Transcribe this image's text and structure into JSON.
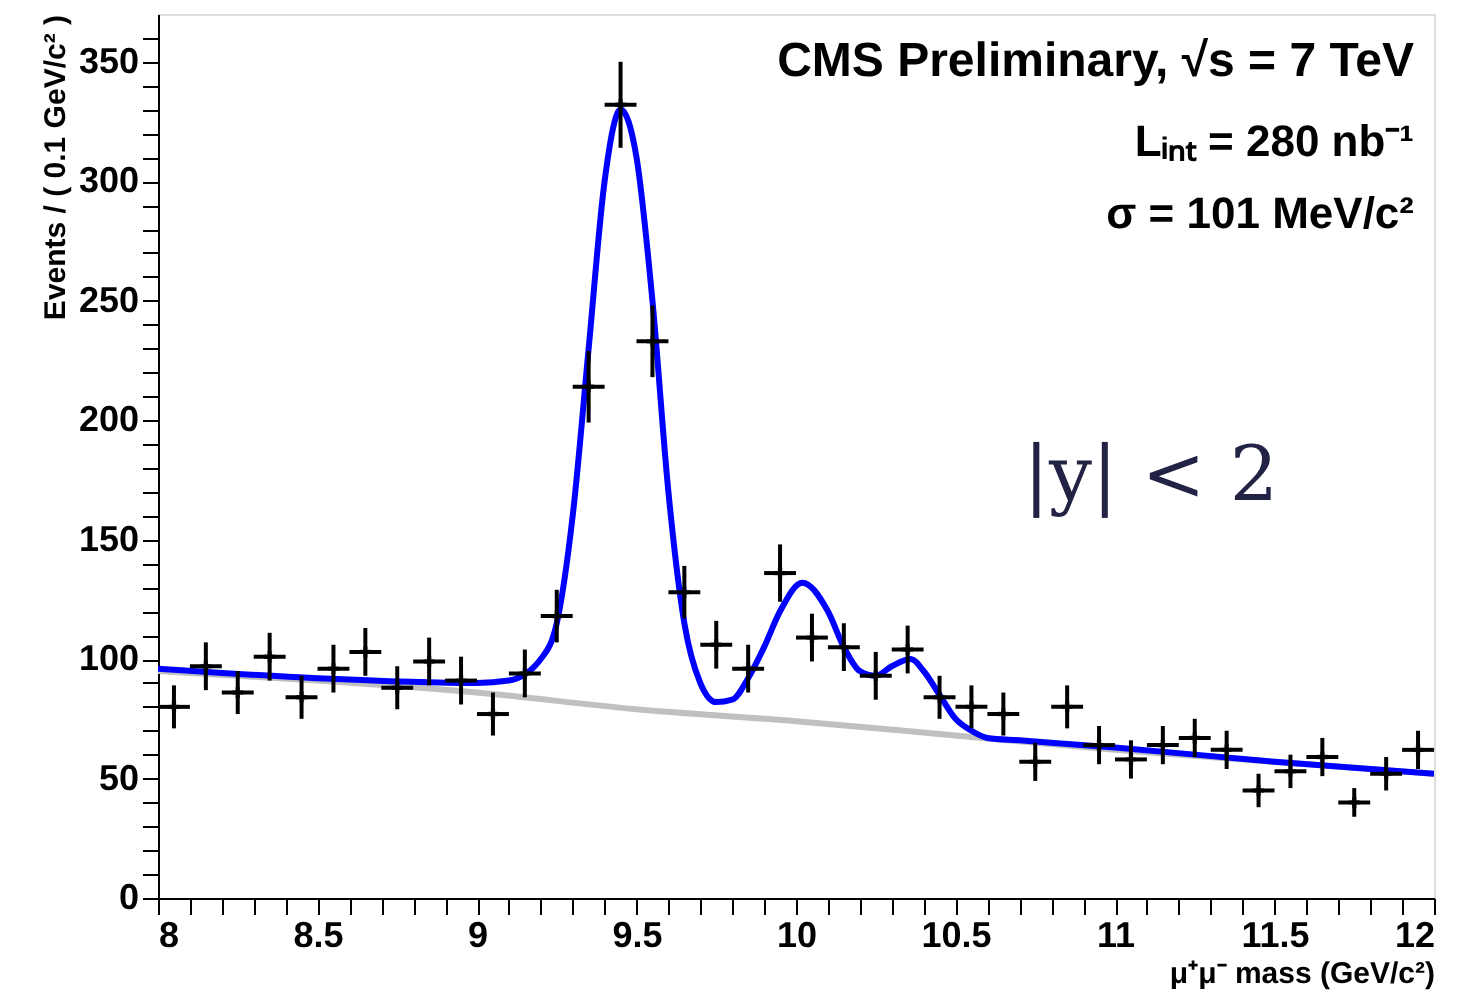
{
  "chart_data": {
    "type": "scatter",
    "xlabel": "μ⁺μ⁻ mass (GeV/c²)",
    "ylabel": "Events / ( 0.1 GeV/c² )",
    "annotations": [
      "CMS Preliminary, √s = 7 TeV",
      "Lᵢₙₜ = 280 nb⁻¹",
      "σ = 101 MeV/c²",
      "|y| < 2"
    ],
    "xlim": [
      8,
      12
    ],
    "xticks": [
      8,
      {
        "value": 8.1,
        "label": null
      },
      {
        "value": 8.2,
        "label": null
      },
      {
        "value": 8.3,
        "label": null
      },
      {
        "value": 8.4,
        "label": null
      },
      8.5,
      {
        "value": 8.6,
        "label": null
      },
      {
        "value": 8.7,
        "label": null
      },
      {
        "value": 8.8,
        "label": null
      },
      {
        "value": 8.9,
        "label": null
      },
      9,
      {
        "value": 9.1,
        "label": null
      },
      {
        "value": 9.2,
        "label": null
      },
      {
        "value": 9.3,
        "label": null
      },
      {
        "value": 9.4,
        "label": null
      },
      9.5,
      {
        "value": 9.6,
        "label": null
      },
      {
        "value": 9.7,
        "label": null
      },
      {
        "value": 9.8,
        "label": null
      },
      {
        "value": 9.9,
        "label": null
      },
      10,
      {
        "value": 10.1,
        "label": null
      },
      {
        "value": 10.2,
        "label": null
      },
      {
        "value": 10.3,
        "label": null
      },
      {
        "value": 10.4,
        "label": null
      },
      10.5,
      {
        "value": 10.6,
        "label": null
      },
      {
        "value": 10.7,
        "label": null
      },
      {
        "value": 10.8,
        "label": null
      },
      {
        "value": 10.9,
        "label": null
      },
      11,
      {
        "value": 11.1,
        "label": null
      },
      {
        "value": 11.2,
        "label": null
      },
      {
        "value": 11.3,
        "label": null
      },
      {
        "value": 11.4,
        "label": null
      },
      11.5,
      {
        "value": 11.6,
        "label": null
      },
      {
        "value": 11.7,
        "label": null
      },
      {
        "value": 11.8,
        "label": null
      },
      {
        "value": 11.9,
        "label": null
      },
      12
    ],
    "ylim": [
      0,
      370
    ],
    "yticks": [
      0,
      {
        "value": 10,
        "label": null
      },
      {
        "value": 20,
        "label": null
      },
      {
        "value": 30,
        "label": null
      },
      {
        "value": 40,
        "label": null
      },
      50,
      {
        "value": 60,
        "label": null
      },
      {
        "value": 70,
        "label": null
      },
      {
        "value": 80,
        "label": null
      },
      {
        "value": 90,
        "label": null
      },
      100,
      {
        "value": 110,
        "label": null
      },
      {
        "value": 120,
        "label": null
      },
      {
        "value": 130,
        "label": null
      },
      {
        "value": 140,
        "label": null
      },
      150,
      {
        "value": 160,
        "label": null
      },
      {
        "value": 170,
        "label": null
      },
      {
        "value": 180,
        "label": null
      },
      {
        "value": 190,
        "label": null
      },
      200,
      {
        "value": 210,
        "label": null
      },
      {
        "value": 220,
        "label": null
      },
      {
        "value": 230,
        "label": null
      },
      {
        "value": 240,
        "label": null
      },
      250,
      {
        "value": 260,
        "label": null
      },
      {
        "value": 270,
        "label": null
      },
      {
        "value": 280,
        "label": null
      },
      {
        "value": 290,
        "label": null
      },
      300,
      {
        "value": 310,
        "label": null
      },
      {
        "value": 320,
        "label": null
      },
      {
        "value": 330,
        "label": null
      },
      {
        "value": 340,
        "label": null
      },
      350,
      {
        "value": 360,
        "label": null
      }
    ],
    "grid": false,
    "series": [
      {
        "type": "line",
        "color": "#c0c0c0",
        "line_style": "solid",
        "x": [
          8,
          8.5,
          9,
          9.5,
          10,
          10.5,
          11,
          11.5,
          12
        ],
        "values": [
          95,
          91,
          86,
          79,
          74,
          68,
          62,
          57,
          52
        ]
      },
      {
        "type": "line",
        "color": "#0000ff",
        "line_style": "solid",
        "x": [
          8,
          8.5,
          9,
          9.1,
          9.2,
          9.25,
          9.3,
          9.35,
          9.4,
          9.45,
          9.5,
          9.55,
          9.6,
          9.65,
          9.7,
          9.75,
          9.8,
          9.85,
          9.9,
          9.95,
          10.02,
          10.1,
          10.15,
          10.2,
          10.25,
          10.3,
          10.36,
          10.4,
          10.45,
          10.5,
          10.55,
          10.6,
          10.7,
          11,
          11.5,
          12
        ],
        "values": [
          96,
          92,
          90,
          91,
          100,
          115,
          160,
          230,
          300,
          330,
          310,
          250,
          170,
          115,
          90,
          82,
          83,
          92,
          105,
          120,
          132,
          120,
          105,
          95,
          93,
          97,
          100,
          95,
          85,
          75,
          70,
          67,
          66,
          63,
          57,
          52
        ]
      },
      {
        "type": "scatter",
        "color": "#000000",
        "marker": "cross",
        "x": [
          8.05,
          8.15,
          8.25,
          8.35,
          8.45,
          8.55,
          8.65,
          8.75,
          8.85,
          8.95,
          9.05,
          9.15,
          9.25,
          9.35,
          9.45,
          9.55,
          9.65,
          9.75,
          9.85,
          9.95,
          10.05,
          10.15,
          10.25,
          10.35,
          10.45,
          10.55,
          10.65,
          10.75,
          10.85,
          10.95,
          11.05,
          11.15,
          11.25,
          11.35,
          11.45,
          11.55,
          11.65,
          11.75,
          11.85,
          11.95
        ],
        "values": [
          80,
          97,
          86,
          101,
          84,
          96,
          103,
          88,
          99,
          91,
          77,
          94,
          118,
          214,
          332,
          233,
          128,
          106,
          96,
          136,
          109,
          105,
          93,
          104,
          84,
          80,
          77,
          57,
          80,
          64,
          58,
          64,
          67,
          62,
          45,
          53,
          59,
          40,
          52,
          62
        ],
        "errors": [
          9,
          10,
          9,
          10,
          9,
          10,
          10,
          9,
          10,
          10,
          9,
          10,
          11,
          15,
          18,
          15,
          11,
          10,
          10,
          12,
          10,
          10,
          10,
          10,
          9,
          9,
          9,
          8,
          9,
          8,
          8,
          8,
          8,
          8,
          7,
          7,
          8,
          6,
          7,
          8
        ],
        "xerrors": [
          0.05,
          0.05,
          0.05,
          0.05,
          0.05,
          0.05,
          0.05,
          0.05,
          0.05,
          0.05,
          0.05,
          0.05,
          0.05,
          0.05,
          0.05,
          0.05,
          0.05,
          0.05,
          0.05,
          0.05,
          0.05,
          0.05,
          0.05,
          0.05,
          0.05,
          0.05,
          0.05,
          0.05,
          0.05,
          0.05,
          0.05,
          0.05,
          0.05,
          0.05,
          0.05,
          0.05,
          0.05,
          0.05,
          0.05,
          0.05
        ]
      }
    ]
  }
}
